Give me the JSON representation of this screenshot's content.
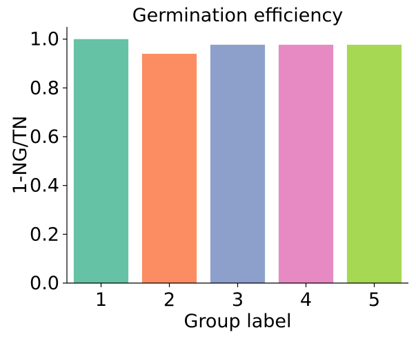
{
  "chart_data": {
    "type": "bar",
    "title": "Germination efficiency",
    "xlabel": "Group label",
    "ylabel": "1-NG/TN",
    "categories": [
      "1",
      "2",
      "3",
      "4",
      "5"
    ],
    "values": [
      1.0,
      0.94,
      0.977,
      0.977,
      0.977
    ],
    "colors": [
      "#66c2a5",
      "#fc8d62",
      "#8da0cb",
      "#e78ac3",
      "#a6d854"
    ],
    "ylim": [
      0,
      1.05
    ],
    "yticks": [
      0.0,
      0.2,
      0.4,
      0.6,
      0.8,
      1.0
    ],
    "ytick_labels": [
      "0.0",
      "0.2",
      "0.4",
      "0.6",
      "0.8",
      "1.0"
    ],
    "grid": false,
    "legend": "none"
  }
}
